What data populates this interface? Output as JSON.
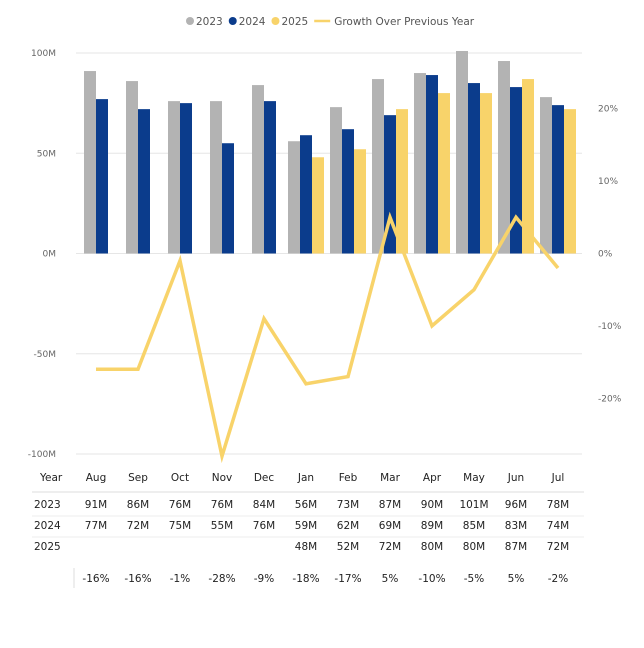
{
  "chart_data": {
    "type": "bar",
    "categories": [
      "Aug",
      "Sep",
      "Oct",
      "Nov",
      "Dec",
      "Jan",
      "Feb",
      "Mar",
      "Apr",
      "May",
      "Jun",
      "Jul"
    ],
    "series": [
      {
        "name": "2023",
        "type": "bar",
        "color": "#b3b3b3",
        "values": [
          91,
          86,
          76,
          76,
          84,
          56,
          73,
          87,
          90,
          101,
          96,
          78
        ]
      },
      {
        "name": "2024",
        "type": "bar",
        "color": "#0b3c8c",
        "values": [
          77,
          72,
          75,
          55,
          76,
          59,
          62,
          69,
          89,
          85,
          83,
          74
        ]
      },
      {
        "name": "2025",
        "type": "bar",
        "color": "#f8d36a",
        "values": [
          null,
          null,
          null,
          null,
          null,
          48,
          52,
          72,
          80,
          80,
          87,
          72
        ]
      },
      {
        "name": "Growth Over Previous Year",
        "type": "line",
        "color": "#f8d36a",
        "axis": "right",
        "values": [
          -16,
          -16,
          -1,
          -28,
          -9,
          -18,
          -17,
          5,
          -10,
          -5,
          5,
          -2
        ]
      }
    ],
    "y_left": {
      "ticks": [
        "100M",
        "50M",
        "0M",
        "-50M",
        "-100M"
      ],
      "tick_values": [
        100,
        50,
        0,
        -50,
        -100
      ],
      "range": [
        -100,
        100
      ]
    },
    "y_right": {
      "ticks": [
        "20%",
        "10%",
        "0%",
        "-10%",
        "-20%"
      ],
      "tick_values": [
        20,
        10,
        0,
        -10,
        -20
      ],
      "range": [
        -27.7,
        27.7
      ]
    },
    "legend": {
      "position": "top",
      "items": [
        "2023",
        "2024",
        "2025",
        "Growth Over Previous Year"
      ]
    },
    "grid": true,
    "table": {
      "header_label": "Year",
      "rows": [
        {
          "label": "2023",
          "cells": [
            "91M",
            "86M",
            "76M",
            "76M",
            "84M",
            "56M",
            "73M",
            "87M",
            "90M",
            "101M",
            "96M",
            "78M"
          ]
        },
        {
          "label": "2024",
          "cells": [
            "77M",
            "72M",
            "75M",
            "55M",
            "76M",
            "59M",
            "62M",
            "69M",
            "89M",
            "85M",
            "83M",
            "74M"
          ]
        },
        {
          "label": "2025",
          "cells": [
            "",
            "",
            "",
            "",
            "",
            "48M",
            "52M",
            "72M",
            "80M",
            "80M",
            "87M",
            "72M"
          ]
        },
        {
          "label": "",
          "cells": [
            "-16%",
            "-16%",
            "-1%",
            "-28%",
            "-9%",
            "-18%",
            "-17%",
            "5%",
            "-10%",
            "-5%",
            "5%",
            "-2%"
          ]
        }
      ]
    }
  }
}
